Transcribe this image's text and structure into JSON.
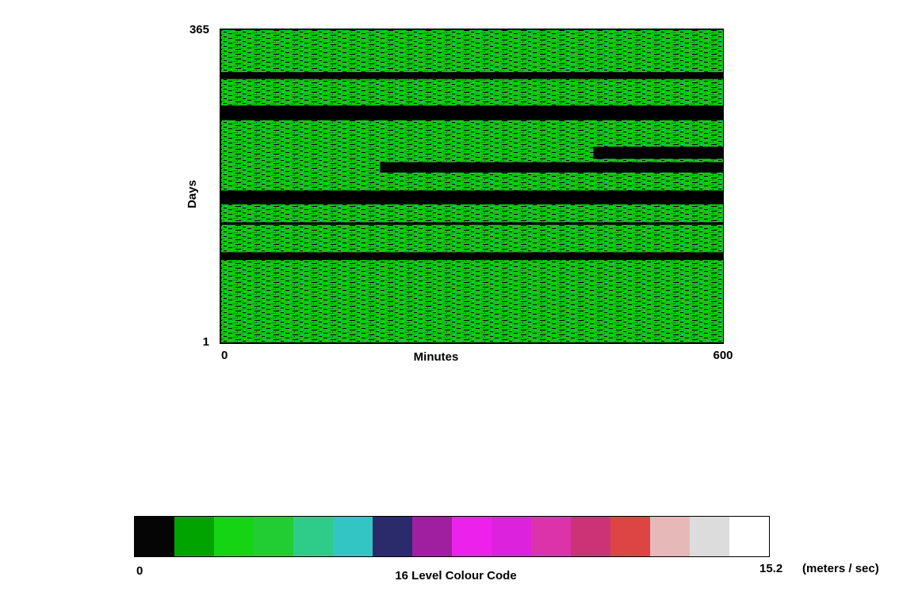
{
  "chart_data": {
    "type": "heatmap",
    "xlabel": "Minutes",
    "ylabel": "Days",
    "xlim": [
      0,
      600
    ],
    "ylim": [
      1,
      365
    ],
    "xticks": [
      0,
      600
    ],
    "yticks": [
      1,
      365
    ],
    "missing_bands": [
      {
        "days": [
          308,
          316
        ],
        "minutes": [
          0,
          600
        ]
      },
      {
        "days": [
          260,
          277
        ],
        "minutes": [
          0,
          600
        ]
      },
      {
        "days": [
          215,
          229
        ],
        "minutes": [
          445,
          600
        ]
      },
      {
        "days": [
          199,
          211
        ],
        "minutes": [
          190,
          600
        ]
      },
      {
        "days": [
          162,
          178
        ],
        "minutes": [
          0,
          600
        ]
      },
      {
        "days": [
          138,
          141
        ],
        "minutes": [
          0,
          600
        ]
      },
      {
        "days": [
          97,
          106
        ],
        "minutes": [
          0,
          600
        ]
      }
    ],
    "colorbar": {
      "min": 0,
      "max": 15.2,
      "label": "16 Level Colour Code",
      "unit": "(meters / sec)",
      "colors": [
        "#050505",
        "#00a300",
        "#14d414",
        "#22cc33",
        "#2ecc88",
        "#33c4c4",
        "#2b2a6a",
        "#a01ea0",
        "#ec22ec",
        "#dd22dd",
        "#dd33aa",
        "#cc3377",
        "#dd4444",
        "#e6b8b8",
        "#dcdcdc",
        "#ffffff"
      ]
    }
  }
}
